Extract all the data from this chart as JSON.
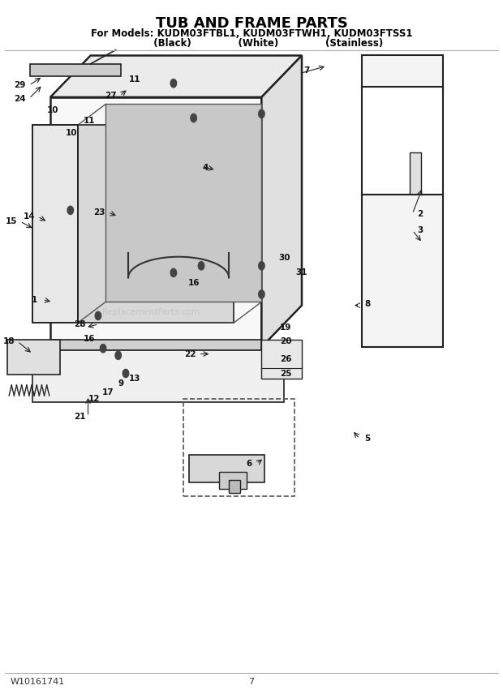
{
  "title": "TUB AND FRAME PARTS",
  "subtitle1": "For Models: KUDM03FTBL1, KUDM03FTWH1, KUDM03FTSS1",
  "subtitle2": "          (Black)              (White)              (Stainless)",
  "footer_left": "W10161741",
  "footer_center": "7",
  "bg_color": "#ffffff",
  "title_fontsize": 13,
  "subtitle_fontsize": 8.5,
  "footer_fontsize": 8,
  "part_label_fontsize": 7.5
}
